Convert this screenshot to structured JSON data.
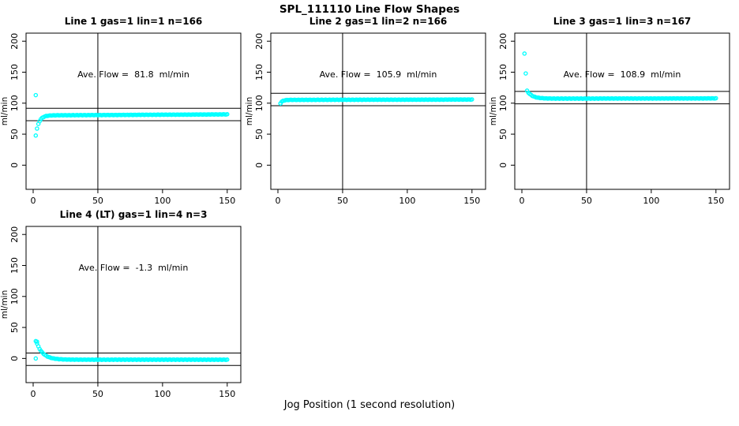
{
  "figure_title": "SPL_111110  Line Flow Shapes",
  "chart_data": {
    "type": "scatter",
    "title": "SPL_111110  Line Flow Shapes",
    "xlabel": "Jog Position (1 second resolution)",
    "ylabel": "ml/min",
    "x_ticks": [
      0,
      50,
      100,
      150
    ],
    "y_ticks": [
      0,
      50,
      100,
      150,
      200
    ],
    "x_range": [
      -5.5,
      160.5
    ],
    "y_range": [
      -39,
      213
    ],
    "vline_x": 50,
    "grid": false,
    "point_color": "#00FFFF",
    "line_color": "#000000",
    "panels": [
      {
        "title": "Line 1 gas=1 lin=1 n=166",
        "annotation": "Ave. Flow =  81.8  ml/min",
        "ave_flow": 81.8,
        "band_lines": [
          91.8,
          71.8
        ],
        "outliers": [
          [
            2,
            113
          ]
        ],
        "profile": {
          "x_start": 2,
          "x_end": 150,
          "step": 1,
          "y_first": 48,
          "plateau": 80.3,
          "tau": 2.4,
          "drift": 0.011
        }
      },
      {
        "title": "Line 2 gas=1 lin=2 n=166",
        "annotation": "Ave. Flow =  105.9  ml/min",
        "ave_flow": 105.9,
        "band_lines": [
          115.9,
          95.9
        ],
        "outliers": [
          [
            2,
            99.5
          ]
        ],
        "profile": {
          "x_start": 2,
          "x_end": 150,
          "step": 1,
          "y_first": 100,
          "plateau": 105.3,
          "tau": 1.6,
          "drift": 0.004
        }
      },
      {
        "title": "Line 3 gas=1 lin=3 n=167",
        "annotation": "Ave. Flow =  108.9  ml/min",
        "ave_flow": 108.9,
        "band_lines": [
          118.9,
          98.9
        ],
        "outliers": [
          [
            2,
            180
          ],
          [
            3,
            148
          ]
        ],
        "profile": {
          "x_start": 4,
          "x_end": 150,
          "step": 1,
          "y_first": 120,
          "plateau": 107.3,
          "tau": 4,
          "drift": 0.003
        }
      },
      {
        "title": "Line 4 (LT) gas=1 lin=4 n=3",
        "annotation": "Ave. Flow =  -1.3  ml/min",
        "ave_flow": -1.3,
        "band_lines": [
          8.7,
          -11.3
        ],
        "outliers": [
          [
            2,
            0
          ],
          [
            2,
            28
          ],
          [
            3,
            27
          ]
        ],
        "profile": {
          "x_start": 3,
          "x_end": 150,
          "step": 1,
          "y_first": 24,
          "plateau": -2,
          "tau": 5,
          "drift": 0
        }
      }
    ]
  }
}
